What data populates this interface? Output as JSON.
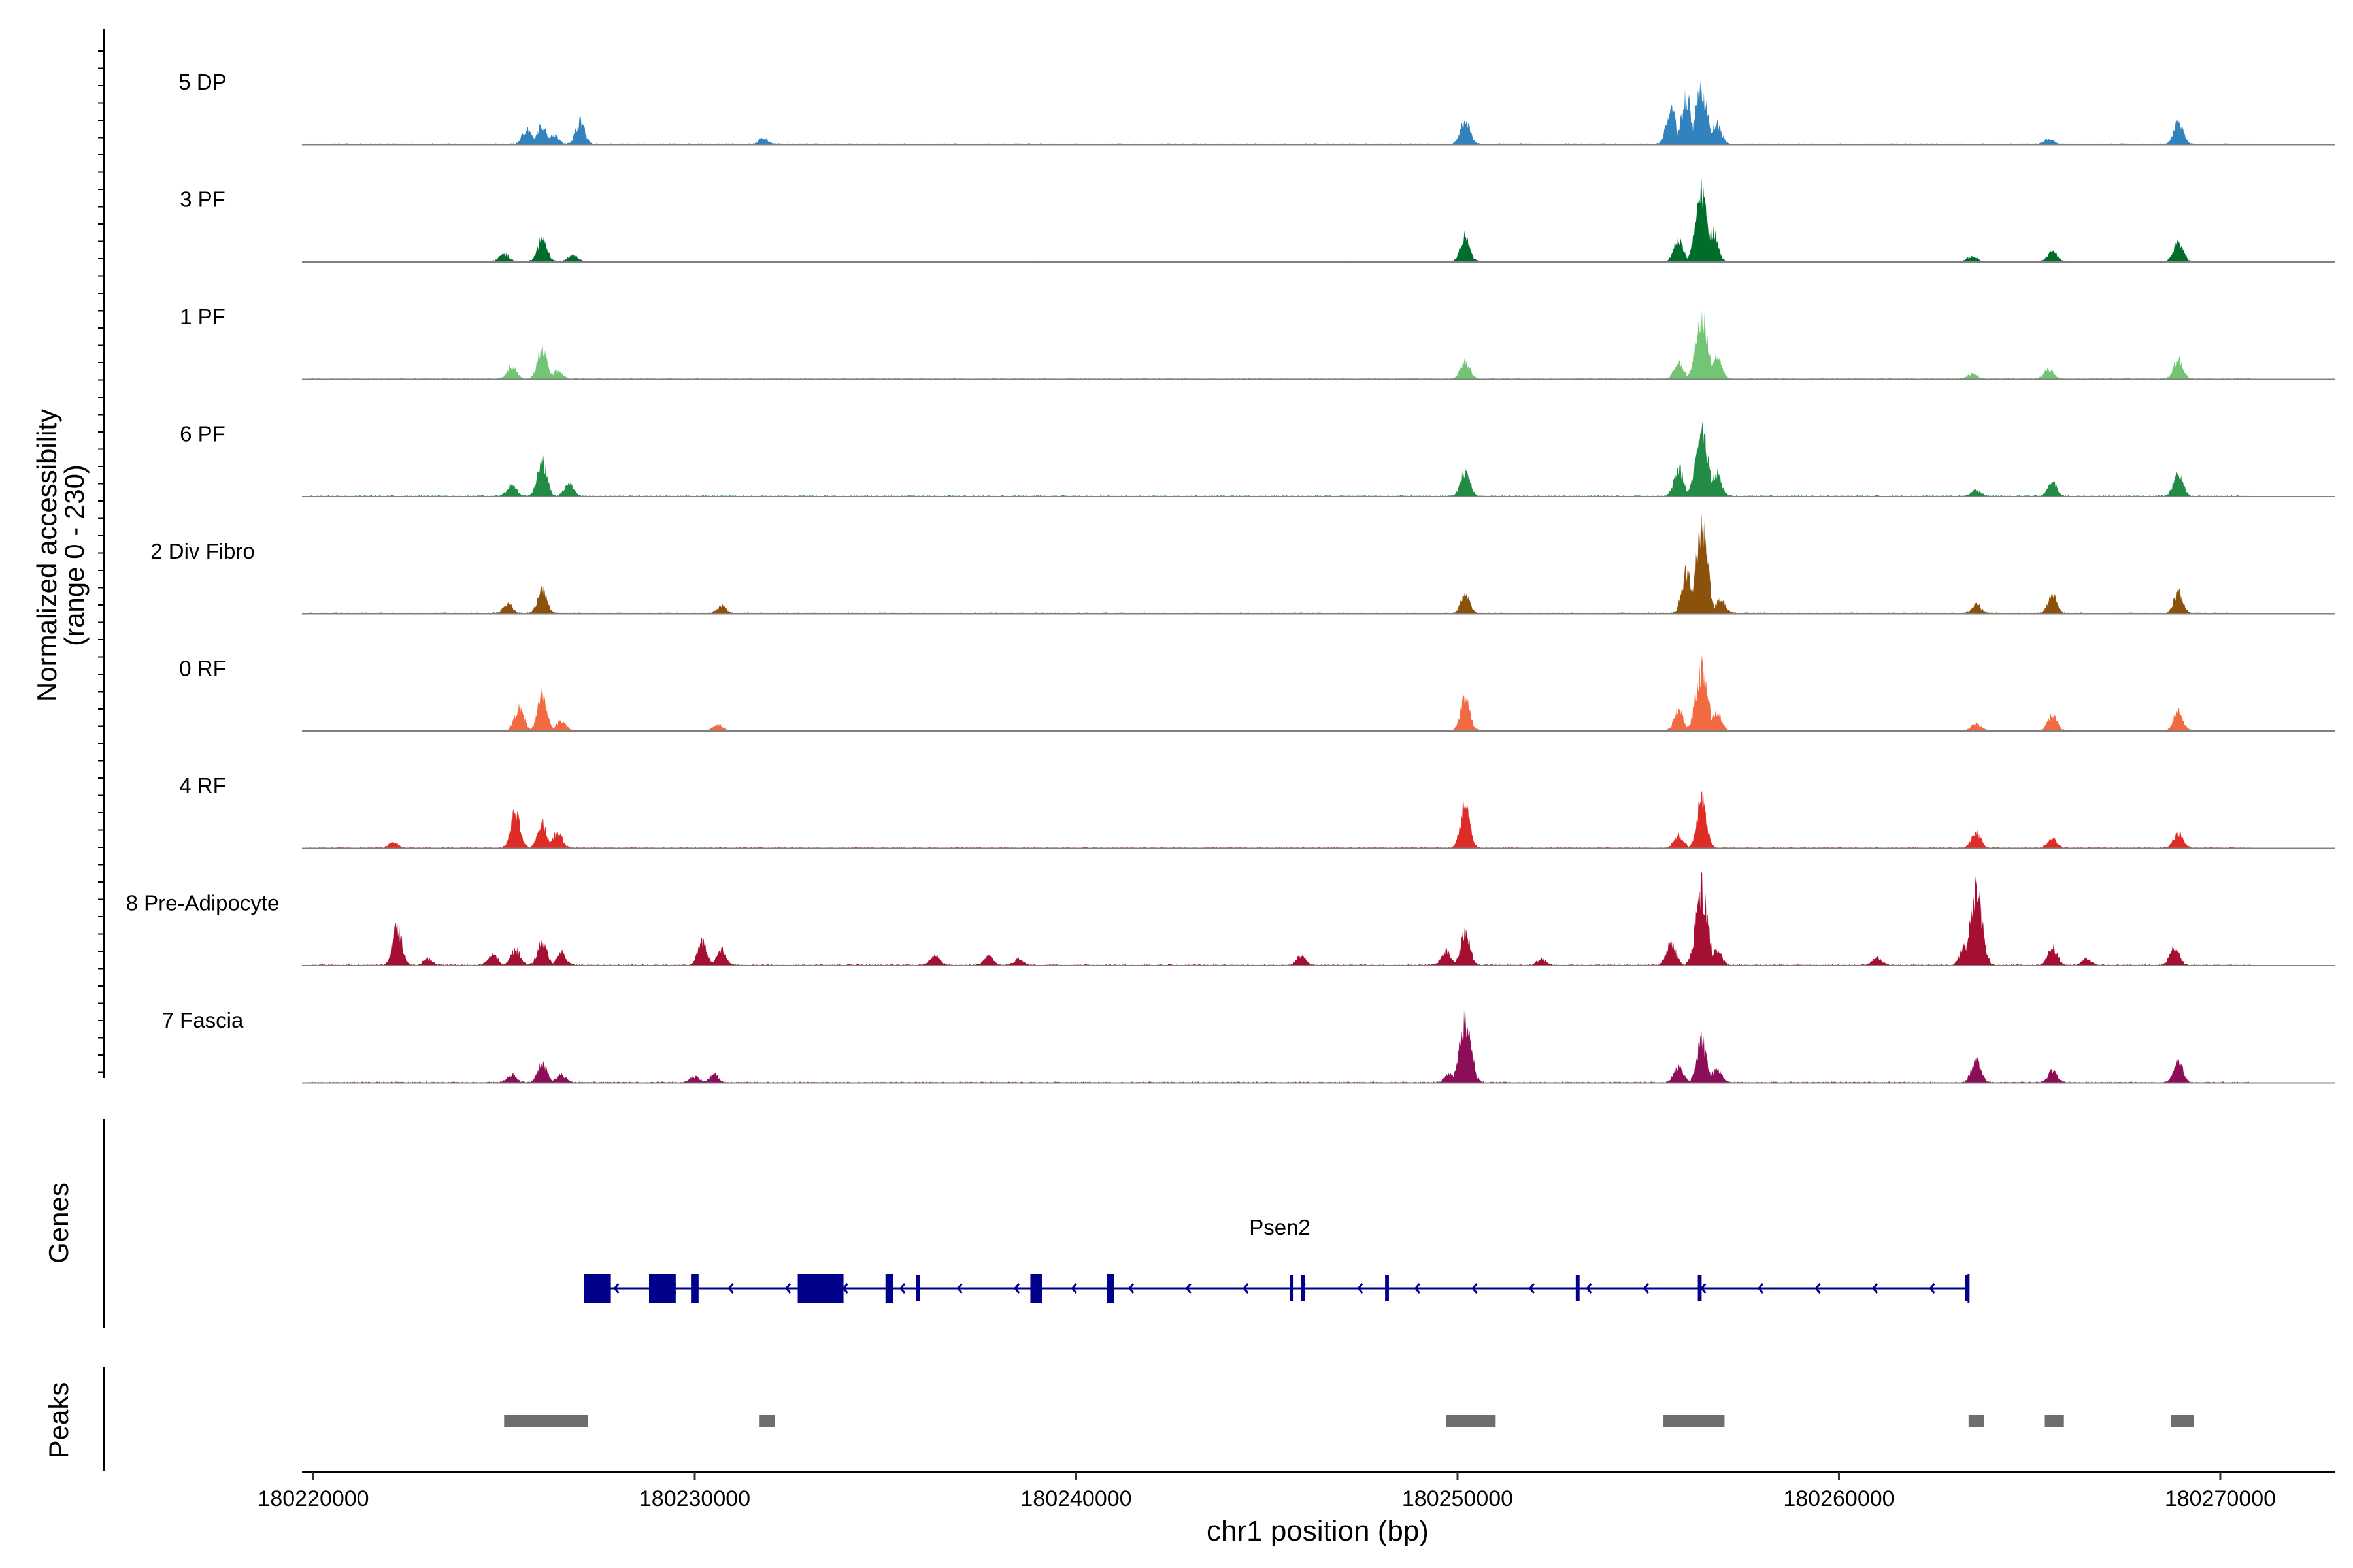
{
  "chart_data": {
    "type": "area",
    "subtype": "coverage-plot",
    "ylabel_line1": "Normalized accessibility",
    "ylabel_line2": "(range 0 - 230)",
    "y_range": [
      0,
      230
    ],
    "xlabel": "chr1 position (bp)",
    "xlim": [
      180219700,
      180273000
    ],
    "x_ticks": [
      {
        "value": 180220000,
        "label": "180220000"
      },
      {
        "value": 180230000,
        "label": "180230000"
      },
      {
        "value": 180240000,
        "label": "180240000"
      },
      {
        "value": 180250000,
        "label": "180250000"
      },
      {
        "value": 180260000,
        "label": "180260000"
      },
      {
        "value": 180270000,
        "label": "180270000"
      }
    ],
    "tracks": [
      {
        "name": "5 DP",
        "color": "#3182bd",
        "peaks": [
          [
            180225600,
            30
          ],
          [
            180226000,
            38
          ],
          [
            180226300,
            20
          ],
          [
            180227000,
            45
          ],
          [
            180231800,
            12
          ],
          [
            180250200,
            48
          ],
          [
            180255600,
            70
          ],
          [
            180256000,
            95
          ],
          [
            180256400,
            105
          ],
          [
            180256800,
            40
          ],
          [
            180265500,
            10
          ],
          [
            180268900,
            45
          ]
        ]
      },
      {
        "name": "3 PF",
        "color": "#006d2c",
        "peaks": [
          [
            180225000,
            15
          ],
          [
            180226000,
            45
          ],
          [
            180226800,
            12
          ],
          [
            180250200,
            50
          ],
          [
            180255800,
            45
          ],
          [
            180256400,
            140
          ],
          [
            180256700,
            60
          ],
          [
            180263500,
            10
          ],
          [
            180265600,
            20
          ],
          [
            180268900,
            40
          ]
        ]
      },
      {
        "name": "1 PF",
        "color": "#74c476",
        "peaks": [
          [
            180225200,
            25
          ],
          [
            180226000,
            58
          ],
          [
            180226400,
            15
          ],
          [
            180250200,
            35
          ],
          [
            180255800,
            30
          ],
          [
            180256400,
            120
          ],
          [
            180256800,
            45
          ],
          [
            180263500,
            10
          ],
          [
            180265500,
            18
          ],
          [
            180268900,
            38
          ]
        ]
      },
      {
        "name": "6 PF",
        "color": "#238b45",
        "peaks": [
          [
            180225200,
            22
          ],
          [
            180226000,
            72
          ],
          [
            180226700,
            25
          ],
          [
            180250200,
            48
          ],
          [
            180255800,
            55
          ],
          [
            180256400,
            140
          ],
          [
            180256800,
            45
          ],
          [
            180263600,
            12
          ],
          [
            180265600,
            26
          ],
          [
            180268900,
            45
          ]
        ]
      },
      {
        "name": "2 Div Fibro",
        "color": "#8c510a",
        "peaks": [
          [
            180225100,
            18
          ],
          [
            180226000,
            48
          ],
          [
            180230700,
            15
          ],
          [
            180250200,
            36
          ],
          [
            180256000,
            80
          ],
          [
            180256400,
            170
          ],
          [
            180256900,
            30
          ],
          [
            180263600,
            18
          ],
          [
            180265600,
            34
          ],
          [
            180268900,
            40
          ]
        ]
      },
      {
        "name": "0 RF",
        "color": "#f16a41",
        "peaks": [
          [
            180225400,
            45
          ],
          [
            180226000,
            68
          ],
          [
            180226500,
            18
          ],
          [
            180230600,
            12
          ],
          [
            180250200,
            64
          ],
          [
            180255800,
            40
          ],
          [
            180256400,
            120
          ],
          [
            180256800,
            35
          ],
          [
            180263600,
            14
          ],
          [
            180265600,
            30
          ],
          [
            180268900,
            38
          ]
        ]
      },
      {
        "name": "4 RF",
        "color": "#de2d26",
        "peaks": [
          [
            180222100,
            10
          ],
          [
            180225300,
            72
          ],
          [
            180226000,
            45
          ],
          [
            180226400,
            30
          ],
          [
            180250200,
            85
          ],
          [
            180255800,
            25
          ],
          [
            180256400,
            95
          ],
          [
            180263600,
            30
          ],
          [
            180265600,
            18
          ],
          [
            180268900,
            30
          ]
        ]
      },
      {
        "name": "8 Pre-Adipocyte",
        "color": "#a50f31",
        "peaks": [
          [
            180222200,
            75
          ],
          [
            180223000,
            12
          ],
          [
            180224700,
            22
          ],
          [
            180225300,
            30
          ],
          [
            180226000,
            45
          ],
          [
            180226500,
            25
          ],
          [
            180230200,
            45
          ],
          [
            180230700,
            30
          ],
          [
            180236300,
            18
          ],
          [
            180237700,
            18
          ],
          [
            180238500,
            12
          ],
          [
            180245900,
            18
          ],
          [
            180249700,
            28
          ],
          [
            180250200,
            65
          ],
          [
            180252200,
            12
          ],
          [
            180255600,
            45
          ],
          [
            180256400,
            150
          ],
          [
            180256800,
            30
          ],
          [
            180261000,
            15
          ],
          [
            180263300,
            40
          ],
          [
            180263600,
            150
          ],
          [
            180265600,
            35
          ],
          [
            180266500,
            12
          ],
          [
            180268800,
            35
          ]
        ]
      },
      {
        "name": "7 Fascia",
        "color": "#8c0d58",
        "peaks": [
          [
            180225200,
            15
          ],
          [
            180226000,
            38
          ],
          [
            180226500,
            15
          ],
          [
            180230000,
            12
          ],
          [
            180230500,
            15
          ],
          [
            180249800,
            18
          ],
          [
            180250200,
            120
          ],
          [
            180255800,
            30
          ],
          [
            180256400,
            85
          ],
          [
            180256800,
            25
          ],
          [
            180263600,
            45
          ],
          [
            180265600,
            22
          ],
          [
            180268900,
            42
          ]
        ]
      }
    ],
    "genes": {
      "title": "Genes",
      "name": "Psen2",
      "color": "#00008b",
      "span": [
        180227100,
        180263400
      ],
      "strand": "-",
      "exons": [
        [
          180227100,
          180227800
        ],
        [
          180228800,
          180229500
        ],
        [
          180229900,
          180230100
        ],
        [
          180232700,
          180233900
        ],
        [
          180235000,
          180235200
        ],
        [
          180235800,
          180235900
        ],
        [
          180238800,
          180239100
        ],
        [
          180240800,
          180241000
        ],
        [
          180245600,
          180245700
        ],
        [
          180245900,
          180246000
        ],
        [
          180248100,
          180248200
        ],
        [
          180253100,
          180253200
        ],
        [
          180256300,
          180256400
        ],
        [
          180263300,
          180263400
        ]
      ]
    },
    "peaks_track": {
      "title": "Peaks",
      "color": "#6e6e6e",
      "regions": [
        [
          180225000,
          180227200
        ],
        [
          180231700,
          180232100
        ],
        [
          180249700,
          180251000
        ],
        [
          180255400,
          180257000
        ],
        [
          180263400,
          180263800
        ],
        [
          180265400,
          180265900
        ],
        [
          180268700,
          180269300
        ]
      ]
    }
  }
}
